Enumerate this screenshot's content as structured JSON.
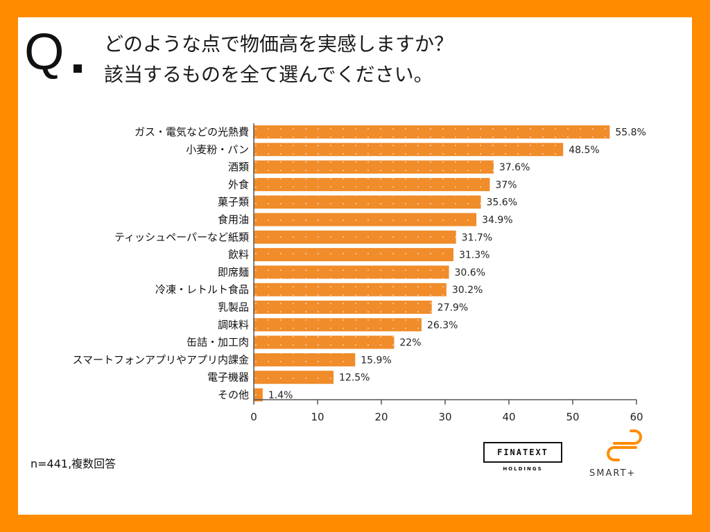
{
  "question": {
    "mark": "Q",
    "line1": "どのような点で物価高を実感しますか？",
    "line2": "該当するものを全て選んでください。"
  },
  "chart_data": {
    "type": "bar",
    "orientation": "horizontal",
    "categories": [
      "ガス・電気などの光熱費",
      "小麦粉・パン",
      "酒類",
      "外食",
      "菓子類",
      "食用油",
      "ティッシュペーパーなど紙類",
      "飲料",
      "即席麺",
      "冷凍・レトルト食品",
      "乳製品",
      "調味料",
      "缶詰・加工肉",
      "スマートフォンアプリやアプリ内課金",
      "電子機器",
      "その他"
    ],
    "values": [
      55.8,
      48.5,
      37.6,
      37,
      35.6,
      34.9,
      31.7,
      31.3,
      30.6,
      30.2,
      27.9,
      26.3,
      22,
      15.9,
      12.5,
      1.4
    ],
    "value_labels": [
      "55.8%",
      "48.5%",
      "37.6%",
      "37%",
      "35.6%",
      "34.9%",
      "31.7%",
      "31.3%",
      "30.6%",
      "30.2%",
      "27.9%",
      "26.3%",
      "22%",
      "15.9%",
      "12.5%",
      "1.4%"
    ],
    "xlim": [
      0,
      60
    ],
    "xticks": [
      0,
      10,
      20,
      30,
      40,
      50,
      60
    ],
    "bar_color": "#f08c2a",
    "axis_color": "#555555"
  },
  "footer": {
    "sample": "n=441,複数回答"
  },
  "logos": {
    "finatext": "FINATEXT",
    "finatext_sub": "HOLDINGS",
    "smart": "SMART+",
    "accent": "#ff8c00"
  }
}
